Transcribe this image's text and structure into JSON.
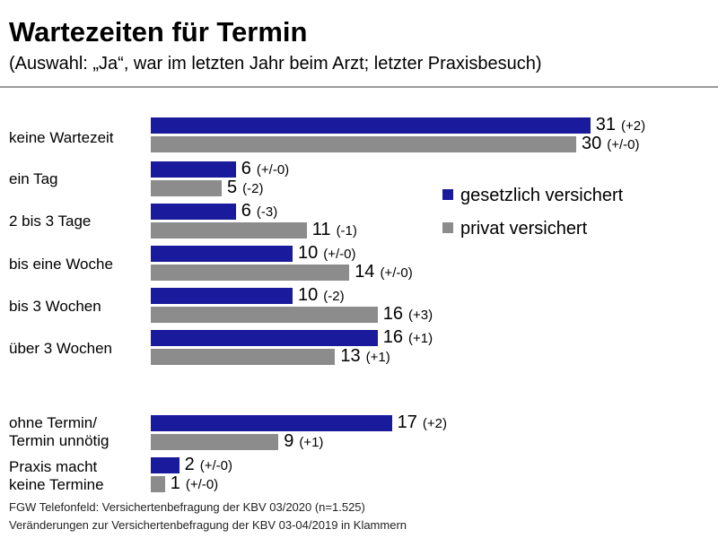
{
  "colors": {
    "gkv": "#1a1a9c",
    "pkv": "#8c8c8c"
  },
  "chart_data": {
    "type": "bar",
    "orientation": "horizontal",
    "title": "Wartezeiten für Termin",
    "subtitle": "(Auswahl: „Ja“, war im letzten Jahr beim Arzt; letzter Praxisbesuch)",
    "xlim": [
      0,
      31
    ],
    "categories": [
      "keine Wartezeit",
      "ein Tag",
      "2 bis 3 Tage",
      "bis eine Woche",
      "bis 3 Wochen",
      "über 3 Wochen",
      "ohne Termin/\nTermin unnötig",
      "Praxis macht\nkeine Termine"
    ],
    "series": [
      {
        "name": "gesetzlich versichert",
        "color": "#1a1a9c",
        "values": [
          31,
          6,
          6,
          10,
          10,
          16,
          17,
          2
        ],
        "changes": [
          "(+2)",
          "(+/-0)",
          "(-3)",
          "(+/-0)",
          "(-2)",
          "(+1)",
          "(+2)",
          "(+/-0)"
        ]
      },
      {
        "name": "privat versichert",
        "color": "#8c8c8c",
        "values": [
          30,
          5,
          11,
          14,
          16,
          13,
          9,
          1
        ],
        "changes": [
          "(+/-0)",
          "(-2)",
          "(-1)",
          "(+/-0)",
          "(+3)",
          "(+1)",
          "(+1)",
          "(+/-0)"
        ]
      }
    ],
    "legend_position": "right",
    "grid": false
  },
  "footer": {
    "line1": "FGW Telefonfeld: Versichertenbefragung der KBV 03/2020 (n=1.525)",
    "line2": "Veränderungen zur Versichertenbefragung der KBV 03-04/2019 in Klammern"
  }
}
